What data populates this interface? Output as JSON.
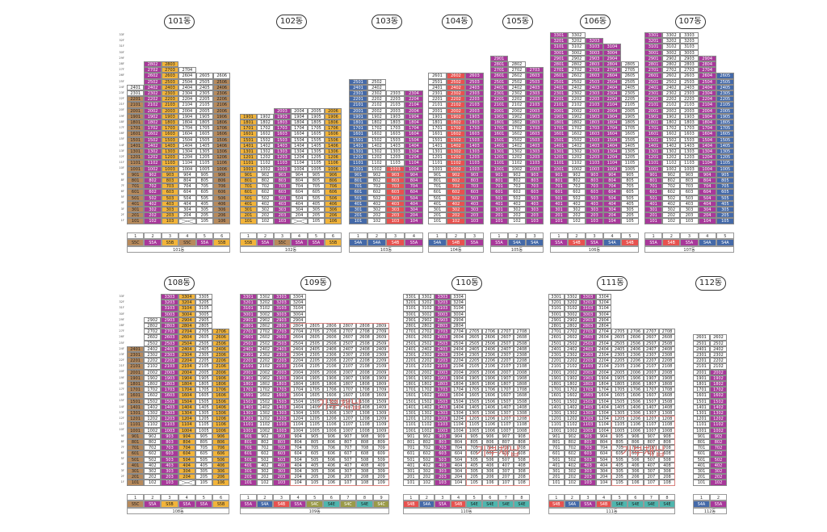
{
  "colors": {
    "S5C": "#b78a5c",
    "S5B": "#f2b43a",
    "S5A": "#a8389a",
    "S4A": "#4469a8",
    "S4B": "#e7524f",
    "S4C": "#9a9a47",
    "S4E": "#4eb6ae",
    "plain": "#ffffff"
  },
  "floor_labels": [
    "33F",
    "32F",
    "31F",
    "30F",
    "29F",
    "28F",
    "27F",
    "26F",
    "25F",
    "24F",
    "23F",
    "22F",
    "21F",
    "20F",
    "19F",
    "18F",
    "17F",
    "16F",
    "15F",
    "14F",
    "13F",
    "12F",
    "11F",
    "10F",
    "9F",
    "8F",
    "7F",
    "6F",
    "5F",
    "4F",
    "3F",
    "2F",
    "1F"
  ],
  "buildings": [
    {
      "name": "101동",
      "label": "101동",
      "lines": 6,
      "tops": [
        24,
        28,
        28,
        27,
        26,
        26
      ],
      "bottoms": [
        1,
        1,
        1,
        2,
        1,
        1
      ],
      "missing": [
        [
          1,
          4
        ]
      ],
      "cols": [
        "S5C",
        "S5A",
        "S5B",
        "plain",
        "plain",
        "S5C"
      ],
      "colored": [
        [
          1,
          22
        ],
        [
          1,
          28
        ],
        [
          1,
          28
        ],
        [
          0,
          0
        ],
        [
          0,
          0
        ],
        [
          1,
          25
        ]
      ],
      "legend": [
        "S5C",
        "S5A",
        "S5B",
        "S5C",
        "S5A",
        "S5B"
      ]
    },
    {
      "name": "102동",
      "label": "102동",
      "lines": 6,
      "tops": [
        19,
        19,
        20,
        20,
        20,
        20
      ],
      "bottoms": [
        1,
        1,
        1,
        2,
        1,
        1
      ],
      "missing": [
        [
          1,
          4
        ]
      ],
      "cols": [
        "S5B",
        "plain",
        "S5A",
        "plain",
        "plain",
        "S5B"
      ],
      "colored": [
        [
          1,
          19
        ],
        [
          0,
          0
        ],
        [
          1,
          20
        ],
        [
          0,
          0
        ],
        [
          0,
          0
        ],
        [
          1,
          20
        ]
      ],
      "legend": [
        "S5B",
        "S5A",
        "S5C",
        "S5A",
        "S5A",
        "S5B"
      ]
    },
    {
      "name": "103동",
      "label": "103동",
      "lines": 4,
      "tops": [
        25,
        25,
        23,
        23
      ],
      "bottoms": [
        1,
        1,
        1,
        1
      ],
      "missing": [],
      "cols": [
        "S4A",
        "plain",
        "S4B",
        "S5A"
      ],
      "colored": [
        [
          1,
          25
        ],
        [
          0,
          0
        ],
        [
          1,
          10
        ],
        [
          1,
          23
        ]
      ],
      "legend": [
        "S4A",
        "S4A",
        "S4B",
        "S5A"
      ]
    },
    {
      "name": "104동",
      "label": "104동",
      "lines": 3,
      "tops": [
        26,
        26,
        26
      ],
      "bottoms": [
        1,
        1,
        1
      ],
      "missing": [],
      "cols": [
        "plain",
        "S4B",
        "S5A"
      ],
      "colored": [
        [
          0,
          0
        ],
        [
          1,
          26
        ],
        [
          1,
          26
        ]
      ],
      "legend": [
        "S4A",
        "S4B",
        "S5A"
      ]
    },
    {
      "name": "105동",
      "label": "105동",
      "lines": 3,
      "tops": [
        29,
        28,
        27
      ],
      "bottoms": [
        1,
        1,
        1
      ],
      "missing": [],
      "cols": [
        "S5A",
        "plain",
        "S5A"
      ],
      "colored": [
        [
          1,
          29
        ],
        [
          0,
          0
        ],
        [
          1,
          27
        ]
      ],
      "legend": [
        "S5A",
        "S4A",
        "S4A"
      ]
    },
    {
      "name": "106동",
      "label": "106동",
      "lines": 5,
      "tops": [
        33,
        33,
        32,
        31,
        28
      ],
      "bottoms": [
        1,
        1,
        1,
        1,
        1
      ],
      "missing": [],
      "cols": [
        "S5A",
        "plain",
        "S5A",
        "S5A",
        "plain"
      ],
      "colored": [
        [
          1,
          33
        ],
        [
          0,
          0
        ],
        [
          1,
          32
        ],
        [
          1,
          31
        ],
        [
          0,
          0
        ]
      ],
      "legend": [
        "S5A",
        "S4B",
        "S5A",
        "S4A",
        "S4B"
      ]
    },
    {
      "name": "107동",
      "label": "107동",
      "lines": 5,
      "tops": [
        33,
        33,
        33,
        29,
        26
      ],
      "bottoms": [
        1,
        1,
        1,
        1,
        1
      ],
      "missing": [],
      "cols": [
        "S5A",
        "plain",
        "plain",
        "S5A",
        "S4A"
      ],
      "colored": [
        [
          1,
          33
        ],
        [
          0,
          0
        ],
        [
          0,
          0
        ],
        [
          1,
          29
        ],
        [
          1,
          26
        ]
      ],
      "legend": [
        "S5A",
        "S4B",
        "S5A",
        "S4A",
        "S4A"
      ]
    },
    {
      "name": "108동",
      "label": "108동",
      "lines": 6,
      "tops": [
        24,
        29,
        33,
        33,
        33,
        27
      ],
      "bottoms": [
        1,
        1,
        1,
        2,
        1,
        1
      ],
      "missing": [
        [
          1,
          4
        ]
      ],
      "cols": [
        "S5C",
        "plain",
        "S5A",
        "S5B",
        "plain",
        "S5B"
      ],
      "colored": [
        [
          1,
          24
        ],
        [
          0,
          0
        ],
        [
          1,
          33
        ],
        [
          1,
          33
        ],
        [
          0,
          0
        ],
        [
          1,
          27
        ]
      ],
      "legend": [
        "S5C",
        "S5A",
        "S5B",
        "S5A",
        "S5A",
        "S5B"
      ]
    },
    {
      "name": "109동",
      "label": "109동",
      "lines": 9,
      "tops": [
        33,
        33,
        33,
        33,
        28,
        28,
        28,
        28,
        28
      ],
      "bottoms": [
        1,
        1,
        1,
        1,
        1,
        1,
        1,
        1,
        1
      ],
      "missing": [],
      "cols": [
        "S5A",
        "plain",
        "S5A",
        "plain",
        "plain",
        "plain",
        "plain",
        "plain",
        "plain"
      ],
      "colored": [
        [
          1,
          33
        ],
        [
          0,
          0
        ],
        [
          1,
          33
        ],
        [
          0,
          0
        ],
        [
          0,
          0
        ],
        [
          0,
          0
        ],
        [
          0,
          0
        ],
        [
          0,
          0
        ],
        [
          0,
          0
        ]
      ],
      "legend": [
        "S5A",
        "S4A",
        "S4B",
        "S5A",
        "S4C",
        "S4E",
        "S4C",
        "S4E",
        "S4C"
      ]
    },
    {
      "name": "110동",
      "label": "110동",
      "lines": 8,
      "tops": [
        33,
        33,
        33,
        33,
        27,
        27,
        27,
        27
      ],
      "bottoms": [
        1,
        1,
        1,
        1,
        1,
        1,
        1,
        1
      ],
      "missing": [],
      "cols": [
        "plain",
        "plain",
        "S5A",
        "plain",
        "plain",
        "plain",
        "plain",
        "plain"
      ],
      "colored": [
        [
          0,
          0
        ],
        [
          0,
          0
        ],
        [
          1,
          33
        ],
        [
          0,
          0
        ],
        [
          0,
          0
        ],
        [
          0,
          0
        ],
        [
          0,
          0
        ],
        [
          0,
          0
        ]
      ],
      "legend": [
        "S4B",
        "S4A",
        "S5A",
        "S4B",
        "S4E",
        "S4E",
        "S4E",
        "S4E"
      ]
    },
    {
      "name": "111동",
      "label": "111동",
      "lines": 8,
      "tops": [
        33,
        33,
        33,
        33,
        27,
        27,
        27,
        27
      ],
      "bottoms": [
        1,
        1,
        1,
        1,
        1,
        1,
        1,
        1
      ],
      "missing": [],
      "cols": [
        "plain",
        "plain",
        "S5A",
        "plain",
        "plain",
        "plain",
        "plain",
        "plain"
      ],
      "colored": [
        [
          0,
          0
        ],
        [
          0,
          0
        ],
        [
          1,
          33
        ],
        [
          0,
          0
        ],
        [
          0,
          0
        ],
        [
          0,
          0
        ],
        [
          0,
          0
        ],
        [
          0,
          0
        ]
      ],
      "legend": [
        "S4B",
        "S4A",
        "S5A",
        "S4B",
        "S4E",
        "S4E",
        "S4E",
        "S4E"
      ]
    },
    {
      "name": "112동",
      "label": "112동",
      "lines": 2,
      "tops": [
        26,
        26
      ],
      "bottoms": [
        1,
        1
      ],
      "missing": [],
      "cols": [
        "plain",
        "S5A"
      ],
      "colored": [
        [
          0,
          0
        ],
        [
          1,
          20
        ]
      ],
      "legend": [
        "S4A",
        "S5A"
      ]
    }
  ],
  "stages": [
    {
      "building": "109동",
      "text": "기부채납"
    },
    {
      "building": "110동",
      "text": "기부채납"
    },
    {
      "building": "111동",
      "text": "기부채납"
    }
  ]
}
